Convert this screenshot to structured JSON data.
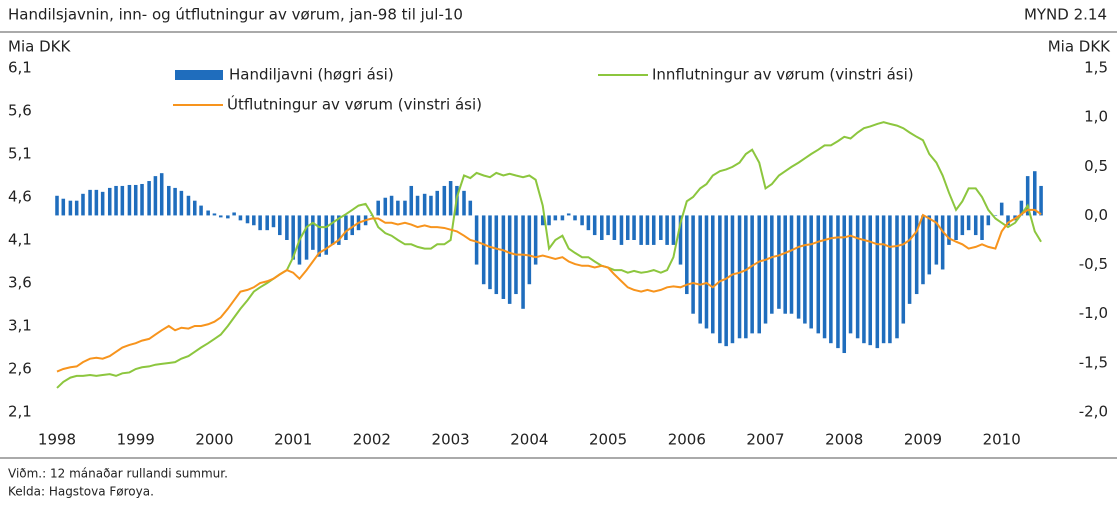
{
  "header": {
    "title": "Handilsjavnin, inn- og útflutningur av vørum, jan-98 til jul-10",
    "figure": "MYND 2.14"
  },
  "chart_data": {
    "type": "combo",
    "ylabel": "Mia DKK",
    "y2label": "Mia DKK",
    "x": [
      1998,
      1998.08,
      1998.17,
      1998.25,
      1998.33,
      1998.42,
      1998.5,
      1998.58,
      1998.67,
      1998.75,
      1998.83,
      1998.92,
      1999,
      1999.08,
      1999.17,
      1999.25,
      1999.33,
      1999.42,
      1999.5,
      1999.58,
      1999.67,
      1999.75,
      1999.83,
      1999.92,
      2000,
      2000.08,
      2000.17,
      2000.25,
      2000.33,
      2000.42,
      2000.5,
      2000.58,
      2000.67,
      2000.75,
      2000.83,
      2000.92,
      2001,
      2001.08,
      2001.17,
      2001.25,
      2001.33,
      2001.42,
      2001.5,
      2001.58,
      2001.67,
      2001.75,
      2001.83,
      2001.92,
      2002,
      2002.08,
      2002.17,
      2002.25,
      2002.33,
      2002.42,
      2002.5,
      2002.58,
      2002.67,
      2002.75,
      2002.83,
      2002.92,
      2003,
      2003.08,
      2003.17,
      2003.25,
      2003.33,
      2003.42,
      2003.5,
      2003.58,
      2003.67,
      2003.75,
      2003.83,
      2003.92,
      2004,
      2004.08,
      2004.17,
      2004.25,
      2004.33,
      2004.42,
      2004.5,
      2004.58,
      2004.67,
      2004.75,
      2004.83,
      2004.92,
      2005,
      2005.08,
      2005.17,
      2005.25,
      2005.33,
      2005.42,
      2005.5,
      2005.58,
      2005.67,
      2005.75,
      2005.83,
      2005.92,
      2006,
      2006.08,
      2006.17,
      2006.25,
      2006.33,
      2006.42,
      2006.5,
      2006.58,
      2006.67,
      2006.75,
      2006.83,
      2006.92,
      2007,
      2007.08,
      2007.17,
      2007.25,
      2007.33,
      2007.42,
      2007.5,
      2007.58,
      2007.67,
      2007.75,
      2007.83,
      2007.92,
      2008,
      2008.08,
      2008.17,
      2008.25,
      2008.33,
      2008.42,
      2008.5,
      2008.58,
      2008.67,
      2008.75,
      2008.83,
      2008.92,
      2009,
      2009.08,
      2009.17,
      2009.25,
      2009.33,
      2009.42,
      2009.5,
      2009.58,
      2009.67,
      2009.75,
      2009.83,
      2009.92,
      2010,
      2010.08,
      2010.17,
      2010.25,
      2010.33,
      2010.42,
      2010.5
    ],
    "series": [
      {
        "name": "Handiljavni (høgri ási)",
        "type": "bar",
        "axis": "y2",
        "color": "#1f6dbd",
        "values": [
          0.2,
          0.17,
          0.15,
          0.15,
          0.22,
          0.26,
          0.26,
          0.24,
          0.28,
          0.3,
          0.3,
          0.31,
          0.31,
          0.32,
          0.35,
          0.4,
          0.43,
          0.3,
          0.28,
          0.25,
          0.2,
          0.15,
          0.1,
          0.05,
          0.02,
          -0.02,
          -0.03,
          0.03,
          -0.05,
          -0.08,
          -0.1,
          -0.15,
          -0.15,
          -0.12,
          -0.2,
          -0.25,
          -0.45,
          -0.5,
          -0.45,
          -0.35,
          -0.42,
          -0.4,
          -0.3,
          -0.3,
          -0.25,
          -0.2,
          -0.15,
          -0.1,
          0.0,
          0.15,
          0.18,
          0.2,
          0.15,
          0.15,
          0.3,
          0.2,
          0.22,
          0.2,
          0.25,
          0.3,
          0.35,
          0.3,
          0.25,
          0.15,
          -0.5,
          -0.7,
          -0.75,
          -0.8,
          -0.85,
          -0.9,
          -0.8,
          -0.95,
          -0.7,
          -0.5,
          -0.1,
          -0.1,
          -0.05,
          -0.05,
          0.02,
          -0.05,
          -0.1,
          -0.15,
          -0.2,
          -0.25,
          -0.2,
          -0.25,
          -0.3,
          -0.25,
          -0.25,
          -0.3,
          -0.3,
          -0.3,
          -0.25,
          -0.3,
          -0.3,
          -0.5,
          -0.8,
          -1.0,
          -1.1,
          -1.15,
          -1.2,
          -1.3,
          -1.33,
          -1.3,
          -1.25,
          -1.25,
          -1.2,
          -1.2,
          -1.1,
          -1.0,
          -0.95,
          -1.0,
          -1.0,
          -1.05,
          -1.1,
          -1.15,
          -1.2,
          -1.25,
          -1.3,
          -1.35,
          -1.4,
          -1.2,
          -1.25,
          -1.3,
          -1.32,
          -1.35,
          -1.3,
          -1.3,
          -1.25,
          -1.1,
          -0.9,
          -0.8,
          -0.7,
          -0.6,
          -0.5,
          -0.55,
          -0.3,
          -0.25,
          -0.2,
          -0.15,
          -0.2,
          -0.25,
          -0.1,
          0.0,
          0.13,
          -0.1,
          -0.05,
          0.15,
          0.4,
          0.45,
          0.3
        ]
      },
      {
        "name": "Innflutningur av vørum (vinstri ási)",
        "type": "line",
        "axis": "y",
        "color": "#8cc63e",
        "values": [
          2.38,
          2.45,
          2.5,
          2.52,
          2.52,
          2.53,
          2.52,
          2.53,
          2.54,
          2.52,
          2.55,
          2.56,
          2.6,
          2.62,
          2.63,
          2.65,
          2.66,
          2.67,
          2.68,
          2.72,
          2.75,
          2.8,
          2.85,
          2.9,
          2.95,
          3.0,
          3.1,
          3.2,
          3.3,
          3.4,
          3.5,
          3.55,
          3.6,
          3.65,
          3.7,
          3.75,
          3.9,
          4.1,
          4.25,
          4.3,
          4.25,
          4.25,
          4.3,
          4.35,
          4.4,
          4.45,
          4.5,
          4.52,
          4.4,
          4.25,
          4.18,
          4.15,
          4.1,
          4.05,
          4.05,
          4.02,
          4.0,
          4.0,
          4.05,
          4.05,
          4.1,
          4.6,
          4.85,
          4.82,
          4.88,
          4.85,
          4.83,
          4.88,
          4.85,
          4.87,
          4.85,
          4.83,
          4.85,
          4.8,
          4.5,
          4.0,
          4.1,
          4.15,
          4.0,
          3.95,
          3.9,
          3.9,
          3.85,
          3.8,
          3.78,
          3.75,
          3.75,
          3.72,
          3.74,
          3.72,
          3.73,
          3.75,
          3.72,
          3.75,
          3.9,
          4.3,
          4.55,
          4.6,
          4.7,
          4.75,
          4.85,
          4.9,
          4.92,
          4.95,
          5.0,
          5.1,
          5.15,
          5.0,
          4.7,
          4.75,
          4.85,
          4.9,
          4.95,
          5.0,
          5.05,
          5.1,
          5.15,
          5.2,
          5.2,
          5.25,
          5.3,
          5.28,
          5.35,
          5.4,
          5.42,
          5.45,
          5.47,
          5.45,
          5.43,
          5.4,
          5.35,
          5.3,
          5.26,
          5.1,
          5.0,
          4.85,
          4.65,
          4.45,
          4.55,
          4.7,
          4.7,
          4.6,
          4.45,
          4.35,
          4.3,
          4.25,
          4.3,
          4.4,
          4.5,
          4.2,
          4.08
        ]
      },
      {
        "name": "Útflutningur av vørum (vinstri ási)",
        "type": "line",
        "axis": "y",
        "color": "#f7941d",
        "values": [
          2.57,
          2.6,
          2.62,
          2.63,
          2.68,
          2.72,
          2.73,
          2.72,
          2.75,
          2.8,
          2.85,
          2.88,
          2.9,
          2.93,
          2.95,
          3.0,
          3.05,
          3.1,
          3.05,
          3.08,
          3.07,
          3.1,
          3.1,
          3.12,
          3.15,
          3.2,
          3.3,
          3.4,
          3.5,
          3.52,
          3.55,
          3.6,
          3.62,
          3.65,
          3.7,
          3.75,
          3.72,
          3.65,
          3.75,
          3.85,
          3.95,
          4.0,
          4.05,
          4.1,
          4.2,
          4.25,
          4.3,
          4.33,
          4.35,
          4.35,
          4.3,
          4.3,
          4.28,
          4.3,
          4.28,
          4.25,
          4.27,
          4.25,
          4.25,
          4.24,
          4.22,
          4.2,
          4.15,
          4.1,
          4.08,
          4.05,
          4.02,
          4.0,
          3.98,
          3.95,
          3.93,
          3.93,
          3.92,
          3.9,
          3.92,
          3.9,
          3.88,
          3.9,
          3.85,
          3.82,
          3.8,
          3.8,
          3.78,
          3.8,
          3.78,
          3.7,
          3.62,
          3.55,
          3.52,
          3.5,
          3.52,
          3.5,
          3.52,
          3.55,
          3.56,
          3.55,
          3.58,
          3.6,
          3.58,
          3.6,
          3.55,
          3.62,
          3.65,
          3.7,
          3.72,
          3.75,
          3.8,
          3.85,
          3.87,
          3.9,
          3.92,
          3.95,
          3.98,
          4.02,
          4.04,
          4.05,
          4.08,
          4.1,
          4.12,
          4.13,
          4.13,
          4.15,
          4.12,
          4.1,
          4.08,
          4.05,
          4.05,
          4.02,
          4.03,
          4.05,
          4.1,
          4.2,
          4.39,
          4.35,
          4.3,
          4.2,
          4.12,
          4.08,
          4.05,
          4.0,
          4.02,
          4.05,
          4.02,
          4.0,
          4.2,
          4.3,
          4.35,
          4.4,
          4.45,
          4.45,
          4.4
        ]
      }
    ],
    "xlim": [
      1998,
      2010.55
    ],
    "xticks": [
      1998,
      1999,
      2000,
      2001,
      2002,
      2003,
      2004,
      2005,
      2006,
      2007,
      2008,
      2009,
      2010
    ],
    "ylim": [
      2.1,
      6.1
    ],
    "yticks": [
      {
        "value": 2.1,
        "label": "2,1"
      },
      {
        "value": 2.6,
        "label": "2,6"
      },
      {
        "value": 3.1,
        "label": "3,1"
      },
      {
        "value": 3.6,
        "label": "3,6"
      },
      {
        "value": 4.1,
        "label": "4,1"
      },
      {
        "value": 4.6,
        "label": "4,6"
      },
      {
        "value": 5.1,
        "label": "5,1"
      },
      {
        "value": 5.6,
        "label": "5,6"
      },
      {
        "value": 6.1,
        "label": "6,1"
      }
    ],
    "y2lim": [
      -2.0,
      1.5
    ],
    "y2ticks": [
      {
        "value": -2.0,
        "label": "-2,0"
      },
      {
        "value": -1.5,
        "label": "-1,5"
      },
      {
        "value": -1.0,
        "label": "-1,0"
      },
      {
        "value": -0.5,
        "label": "-0,5"
      },
      {
        "value": 0.0,
        "label": "0,0"
      },
      {
        "value": 0.5,
        "label": "0,5"
      },
      {
        "value": 1.0,
        "label": "1,0"
      },
      {
        "value": 1.5,
        "label": "1,5"
      }
    ],
    "grid": false
  },
  "footer": {
    "note": "Viðm.: 12 mánaðar rullandi summur.",
    "source": "Kelda: Hagstova Føroya."
  }
}
